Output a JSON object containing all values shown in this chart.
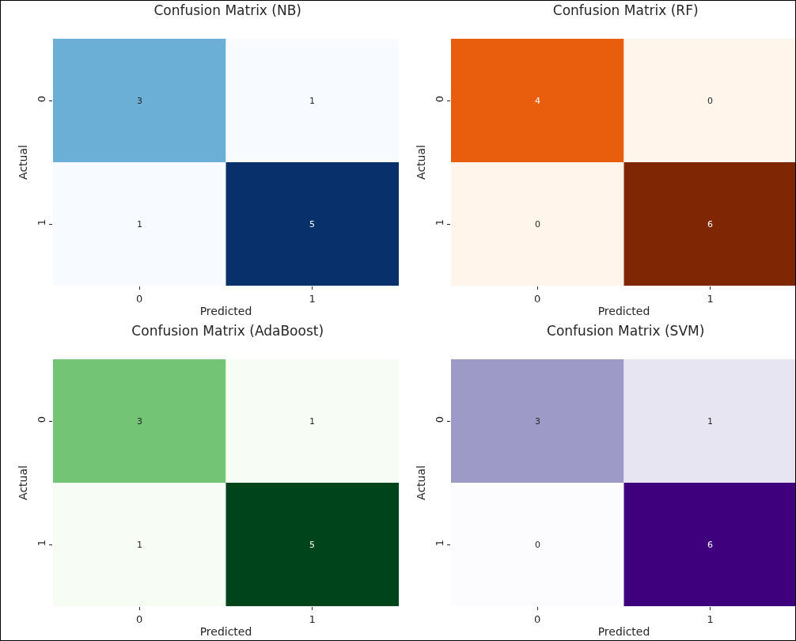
{
  "chart_data": [
    {
      "type": "heatmap",
      "title": "Confusion Matrix (NB)",
      "xlabel": "Predicted",
      "ylabel": "Actual",
      "categories": [
        "0",
        "1"
      ],
      "y_categories": [
        "0",
        "1"
      ],
      "cells": [
        [
          3,
          1
        ],
        [
          1,
          5
        ]
      ],
      "data_labels": true,
      "colors": [
        "#6baed6",
        "#f7fbff",
        "#f7fbff",
        "#08306b"
      ]
    },
    {
      "type": "heatmap",
      "title": "Confusion Matrix (RF)",
      "xlabel": "Predicted",
      "ylabel": "Actual",
      "categories": [
        "0",
        "1"
      ],
      "y_categories": [
        "0",
        "1"
      ],
      "cells": [
        [
          4,
          0
        ],
        [
          0,
          6
        ]
      ],
      "data_labels": true,
      "colors": [
        "#e95e0d",
        "#fff5eb",
        "#fff5eb",
        "#7f2704"
      ]
    },
    {
      "type": "heatmap",
      "title": "Confusion Matrix (AdaBoost)",
      "xlabel": "Predicted",
      "ylabel": "Actual",
      "categories": [
        "0",
        "1"
      ],
      "y_categories": [
        "0",
        "1"
      ],
      "cells": [
        [
          3,
          1
        ],
        [
          1,
          5
        ]
      ],
      "data_labels": true,
      "colors": [
        "#74c476",
        "#f7fcf5",
        "#f7fcf5",
        "#00441b"
      ]
    },
    {
      "type": "heatmap",
      "title": "Confusion Matrix (SVM)",
      "xlabel": "Predicted",
      "ylabel": "Actual",
      "categories": [
        "0",
        "1"
      ],
      "y_categories": [
        "0",
        "1"
      ],
      "cells": [
        [
          3,
          1
        ],
        [
          0,
          6
        ]
      ],
      "data_labels": true,
      "colors": [
        "#9e9ac8",
        "#e7e5f1",
        "#fcfbfd",
        "#3f007d"
      ]
    }
  ]
}
